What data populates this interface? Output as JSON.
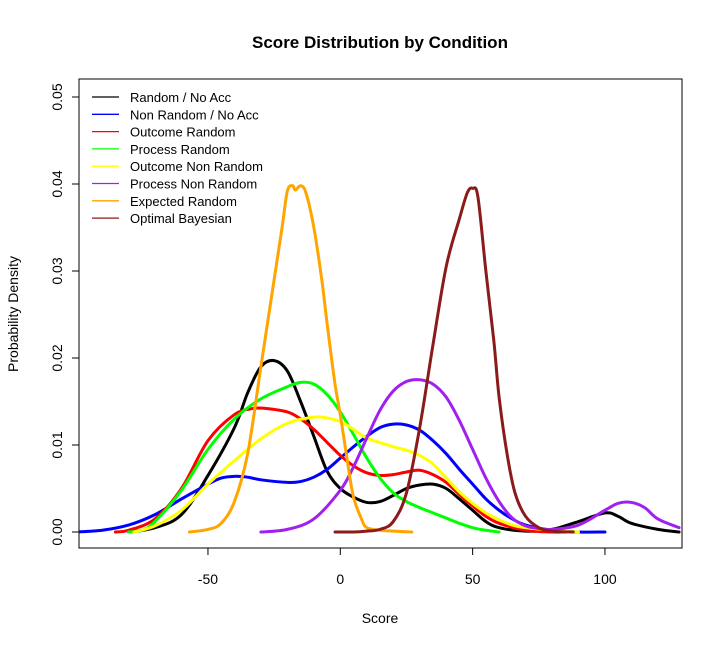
{
  "chart_data": {
    "type": "line",
    "title": "Score Distribution by Condition",
    "xlabel": "Score",
    "ylabel": "Probability Density",
    "xlim": [
      -100,
      128
    ],
    "ylim": [
      0,
      0.052
    ],
    "xticks": [
      -50,
      0,
      50,
      100
    ],
    "yticks": [
      0.0,
      0.01,
      0.02,
      0.03,
      0.04,
      0.05
    ],
    "ytick_labels": [
      "0.00",
      "0.01",
      "0.02",
      "0.03",
      "0.04",
      "0.05"
    ],
    "grid": false,
    "legend_position": "top-left",
    "series": [
      {
        "name": "Random / No Acc",
        "color": "#000000",
        "points": [
          [
            -80,
            0.0
          ],
          [
            -70,
            0.0005
          ],
          [
            -60,
            0.002
          ],
          [
            -50,
            0.0065
          ],
          [
            -40,
            0.012
          ],
          [
            -35,
            0.016
          ],
          [
            -30,
            0.019
          ],
          [
            -25,
            0.0197
          ],
          [
            -20,
            0.0185
          ],
          [
            -15,
            0.015
          ],
          [
            -10,
            0.011
          ],
          [
            -5,
            0.007
          ],
          [
            0,
            0.005
          ],
          [
            5,
            0.004
          ],
          [
            10,
            0.0034
          ],
          [
            15,
            0.0035
          ],
          [
            20,
            0.0042
          ],
          [
            25,
            0.005
          ],
          [
            30,
            0.0054
          ],
          [
            35,
            0.0055
          ],
          [
            40,
            0.005
          ],
          [
            45,
            0.0038
          ],
          [
            50,
            0.0025
          ],
          [
            55,
            0.0012
          ],
          [
            60,
            0.0005
          ],
          [
            70,
            0.0001
          ],
          [
            80,
            0.0003
          ],
          [
            90,
            0.0012
          ],
          [
            100,
            0.0022
          ],
          [
            105,
            0.0018
          ],
          [
            110,
            0.001
          ],
          [
            120,
            0.0003
          ],
          [
            128,
            0.0
          ]
        ]
      },
      {
        "name": "Non Random / No Acc",
        "color": "#0000ff",
        "points": [
          [
            -100,
            0.0
          ],
          [
            -90,
            0.0002
          ],
          [
            -80,
            0.0008
          ],
          [
            -70,
            0.002
          ],
          [
            -60,
            0.0038
          ],
          [
            -50,
            0.0055
          ],
          [
            -45,
            0.0062
          ],
          [
            -40,
            0.0064
          ],
          [
            -35,
            0.0063
          ],
          [
            -30,
            0.006
          ],
          [
            -20,
            0.0057
          ],
          [
            -15,
            0.0058
          ],
          [
            -10,
            0.0063
          ],
          [
            -5,
            0.0072
          ],
          [
            0,
            0.0085
          ],
          [
            5,
            0.0098
          ],
          [
            10,
            0.011
          ],
          [
            15,
            0.012
          ],
          [
            20,
            0.0124
          ],
          [
            25,
            0.0123
          ],
          [
            30,
            0.0117
          ],
          [
            35,
            0.0105
          ],
          [
            40,
            0.009
          ],
          [
            45,
            0.0072
          ],
          [
            50,
            0.0055
          ],
          [
            55,
            0.0038
          ],
          [
            60,
            0.0025
          ],
          [
            65,
            0.0015
          ],
          [
            70,
            0.0008
          ],
          [
            80,
            0.0002
          ],
          [
            90,
            0.0
          ],
          [
            100,
            0.0
          ]
        ]
      },
      {
        "name": "Outcome Random",
        "color": "#ff0000",
        "points": [
          [
            -85,
            0.0
          ],
          [
            -80,
            0.0002
          ],
          [
            -70,
            0.0015
          ],
          [
            -60,
            0.005
          ],
          [
            -50,
            0.0105
          ],
          [
            -40,
            0.0135
          ],
          [
            -33,
            0.0142
          ],
          [
            -28,
            0.0142
          ],
          [
            -20,
            0.0138
          ],
          [
            -15,
            0.013
          ],
          [
            -10,
            0.0118
          ],
          [
            -5,
            0.0103
          ],
          [
            0,
            0.0088
          ],
          [
            5,
            0.0076
          ],
          [
            10,
            0.0068
          ],
          [
            15,
            0.0065
          ],
          [
            20,
            0.0066
          ],
          [
            25,
            0.0069
          ],
          [
            30,
            0.0071
          ],
          [
            35,
            0.0066
          ],
          [
            40,
            0.0057
          ],
          [
            45,
            0.0043
          ],
          [
            50,
            0.003
          ],
          [
            55,
            0.0018
          ],
          [
            60,
            0.001
          ],
          [
            70,
            0.0002
          ],
          [
            80,
            0.0
          ],
          [
            85,
            0.0
          ]
        ]
      },
      {
        "name": "Process Random",
        "color": "#00ff00",
        "points": [
          [
            -80,
            0.0
          ],
          [
            -75,
            0.0002
          ],
          [
            -70,
            0.0012
          ],
          [
            -60,
            0.0048
          ],
          [
            -50,
            0.0095
          ],
          [
            -40,
            0.013
          ],
          [
            -30,
            0.0153
          ],
          [
            -20,
            0.0167
          ],
          [
            -15,
            0.0172
          ],
          [
            -10,
            0.017
          ],
          [
            -5,
            0.0158
          ],
          [
            0,
            0.0138
          ],
          [
            5,
            0.0112
          ],
          [
            10,
            0.0085
          ],
          [
            15,
            0.0062
          ],
          [
            20,
            0.0045
          ],
          [
            25,
            0.0035
          ],
          [
            30,
            0.0028
          ],
          [
            35,
            0.0022
          ],
          [
            40,
            0.0016
          ],
          [
            45,
            0.001
          ],
          [
            50,
            0.0005
          ],
          [
            55,
            0.0002
          ],
          [
            60,
            0.0
          ]
        ]
      },
      {
        "name": "Outcome Non Random",
        "color": "#ffff00",
        "points": [
          [
            -78,
            0.0
          ],
          [
            -70,
            0.0007
          ],
          [
            -60,
            0.0025
          ],
          [
            -50,
            0.0055
          ],
          [
            -40,
            0.0082
          ],
          [
            -30,
            0.0107
          ],
          [
            -20,
            0.0125
          ],
          [
            -10,
            0.0132
          ],
          [
            -5,
            0.0131
          ],
          [
            0,
            0.0127
          ],
          [
            5,
            0.0118
          ],
          [
            10,
            0.0108
          ],
          [
            20,
            0.0098
          ],
          [
            25,
            0.0094
          ],
          [
            30,
            0.0088
          ],
          [
            35,
            0.0078
          ],
          [
            40,
            0.0062
          ],
          [
            45,
            0.0046
          ],
          [
            50,
            0.0033
          ],
          [
            55,
            0.0022
          ],
          [
            60,
            0.0014
          ],
          [
            65,
            0.0008
          ],
          [
            70,
            0.0005
          ],
          [
            80,
            0.0002
          ],
          [
            90,
            0.0
          ]
        ]
      },
      {
        "name": "Process Non Random",
        "color": "#a020f0",
        "points": [
          [
            -30,
            0.0
          ],
          [
            -20,
            0.0003
          ],
          [
            -10,
            0.0015
          ],
          [
            0,
            0.0048
          ],
          [
            5,
            0.0075
          ],
          [
            10,
            0.0108
          ],
          [
            15,
            0.014
          ],
          [
            20,
            0.0162
          ],
          [
            25,
            0.0173
          ],
          [
            30,
            0.0175
          ],
          [
            35,
            0.017
          ],
          [
            40,
            0.0155
          ],
          [
            45,
            0.0128
          ],
          [
            50,
            0.0095
          ],
          [
            55,
            0.0062
          ],
          [
            60,
            0.0035
          ],
          [
            65,
            0.0016
          ],
          [
            70,
            0.0007
          ],
          [
            75,
            0.0004
          ],
          [
            80,
            0.0003
          ],
          [
            90,
            0.0008
          ],
          [
            100,
            0.0025
          ],
          [
            105,
            0.0033
          ],
          [
            110,
            0.0034
          ],
          [
            115,
            0.0028
          ],
          [
            120,
            0.0015
          ],
          [
            128,
            0.0005
          ]
        ]
      },
      {
        "name": "Expected Random",
        "color": "#ffa500",
        "points": [
          [
            -57,
            0.0
          ],
          [
            -50,
            0.0003
          ],
          [
            -45,
            0.001
          ],
          [
            -40,
            0.0035
          ],
          [
            -35,
            0.009
          ],
          [
            -30,
            0.019
          ],
          [
            -25,
            0.029
          ],
          [
            -22,
            0.035
          ],
          [
            -20,
            0.0392
          ],
          [
            -18,
            0.0398
          ],
          [
            -17,
            0.0393
          ],
          [
            -15,
            0.0398
          ],
          [
            -13,
            0.039
          ],
          [
            -10,
            0.035
          ],
          [
            -7,
            0.029
          ],
          [
            -5,
            0.024
          ],
          [
            -2,
            0.017
          ],
          [
            0,
            0.0135
          ],
          [
            3,
            0.0075
          ],
          [
            5,
            0.004
          ],
          [
            8,
            0.0015
          ],
          [
            10,
            0.0005
          ],
          [
            15,
            0.0002
          ],
          [
            20,
            0.0001
          ],
          [
            27,
            0.0
          ]
        ]
      },
      {
        "name": "Optimal Bayesian",
        "color": "#8b1a1a",
        "points": [
          [
            -2,
            0.0
          ],
          [
            5,
            0.0
          ],
          [
            10,
            0.0001
          ],
          [
            15,
            0.0003
          ],
          [
            20,
            0.0012
          ],
          [
            25,
            0.0045
          ],
          [
            30,
            0.012
          ],
          [
            35,
            0.0215
          ],
          [
            40,
            0.0305
          ],
          [
            45,
            0.036
          ],
          [
            48,
            0.039
          ],
          [
            50,
            0.0395
          ],
          [
            52,
            0.0385
          ],
          [
            55,
            0.03
          ],
          [
            58,
            0.022
          ],
          [
            60,
            0.0155
          ],
          [
            63,
            0.009
          ],
          [
            66,
            0.0045
          ],
          [
            70,
            0.0018
          ],
          [
            75,
            0.0005
          ],
          [
            80,
            0.0001
          ],
          [
            88,
            0.0
          ]
        ]
      }
    ]
  }
}
